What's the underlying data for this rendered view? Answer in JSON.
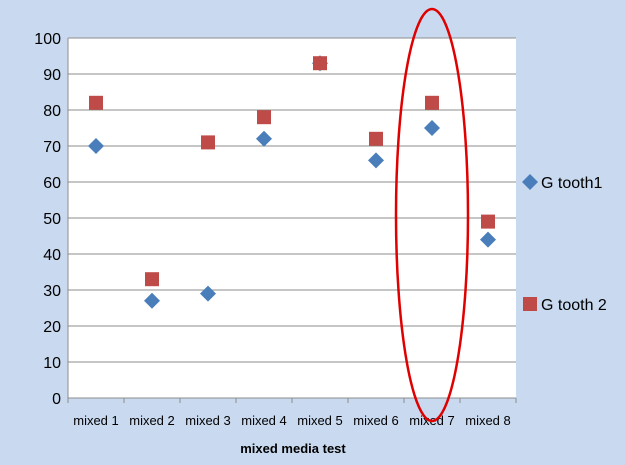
{
  "chart_data": {
    "type": "scatter",
    "title": "",
    "xlabel": "mixed media test",
    "ylabel": "",
    "categories": [
      "mixed 1",
      "mixed 2",
      "mixed 3",
      "mixed 4",
      "mixed 5",
      "mixed 6",
      "mixed 7",
      "mixed 8"
    ],
    "ylim": [
      0,
      100
    ],
    "yticks": [
      0,
      10,
      20,
      30,
      40,
      50,
      60,
      70,
      80,
      90,
      100
    ],
    "grid": true,
    "legend": "right",
    "series": [
      {
        "name": "G tooth1",
        "marker": "diamond",
        "color": "#4a7ebb",
        "values": [
          70,
          27,
          29,
          72,
          93,
          66,
          75,
          44
        ]
      },
      {
        "name": "G tooth 2",
        "marker": "square",
        "color": "#be4b48",
        "values": [
          82,
          33,
          71,
          78,
          93,
          72,
          82,
          49
        ]
      }
    ],
    "annotation": {
      "shape": "ellipse",
      "color": "#e00000",
      "category": "mixed 7"
    }
  }
}
